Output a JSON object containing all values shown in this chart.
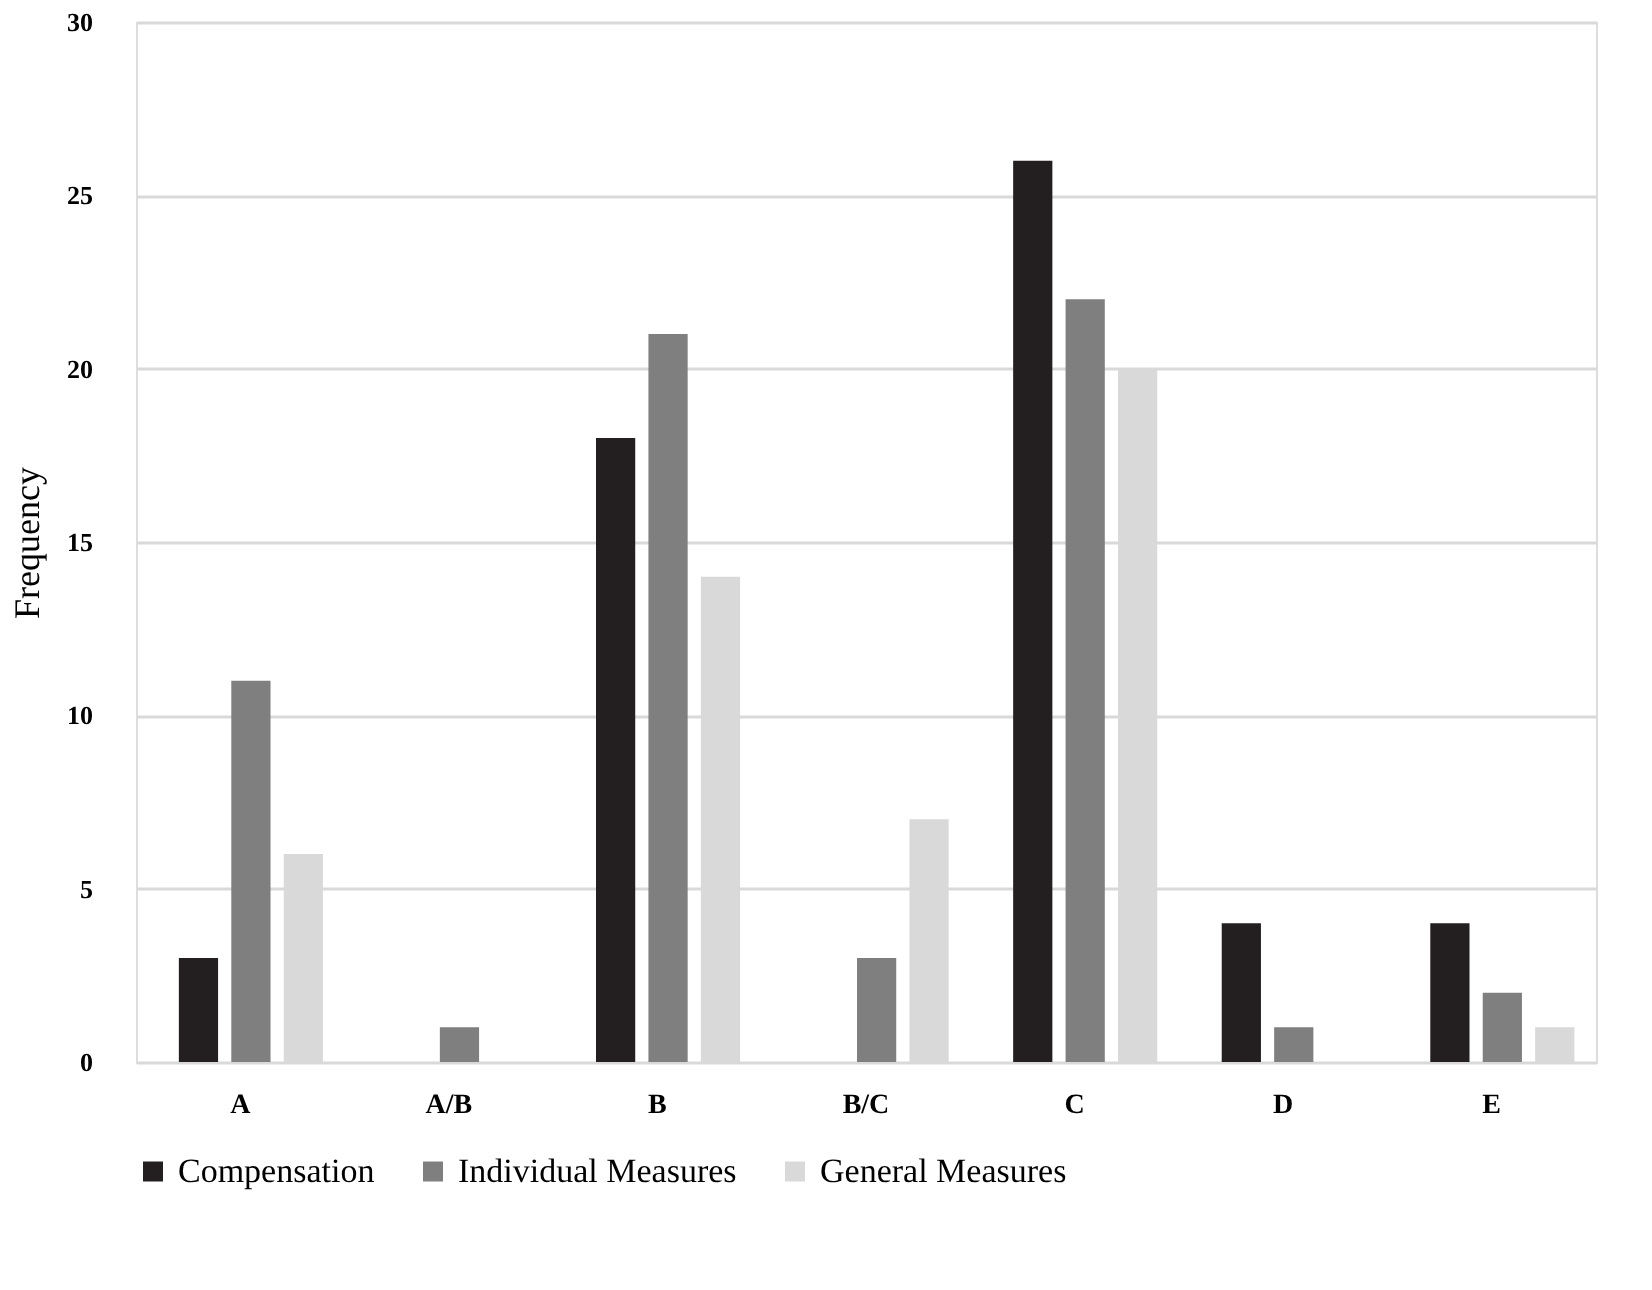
{
  "chart_data": {
    "type": "bar",
    "categories": [
      "A",
      "A/B",
      "B",
      "B/C",
      "C",
      "D",
      "E"
    ],
    "series": [
      {
        "name": "Compensation",
        "color": "#231f20",
        "values": [
          3,
          0,
          18,
          0,
          26,
          4,
          4
        ]
      },
      {
        "name": "Individual Measures",
        "color": "#7f7f7f",
        "values": [
          11,
          1,
          21,
          3,
          22,
          1,
          2
        ]
      },
      {
        "name": "General Measures",
        "color": "#d9d9d9",
        "values": [
          6,
          0,
          14,
          7,
          20,
          0,
          1
        ]
      }
    ],
    "ylabel": "Frequency",
    "ylim": [
      0,
      30
    ],
    "yticks": [
      0,
      5,
      10,
      15,
      20,
      25,
      30
    ],
    "grid": "y",
    "legend": "bottom"
  }
}
